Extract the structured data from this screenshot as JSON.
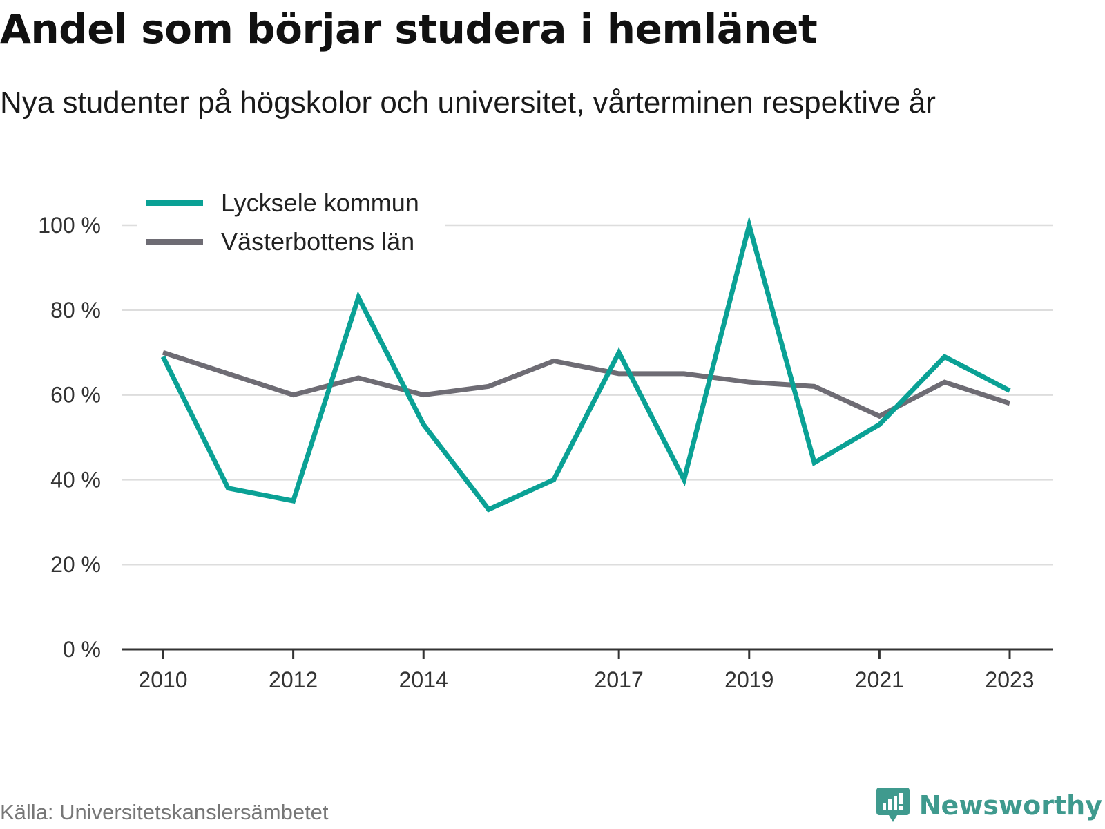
{
  "title": "Andel som börjar studera i hemlänet",
  "subtitle": "Nya studenter på högskolor och universitet, vårterminen respektive år",
  "source": "Källa: Universitetskanslersämbetet",
  "brand": "Newsworthy",
  "colors": {
    "lycksele": "#0aa195",
    "vasterbotten": "#6e6c74",
    "grid": "#dddddd",
    "axis": "#333333",
    "brand": "#3f9a8e"
  },
  "chart_data": {
    "type": "line",
    "x": [
      2010,
      2011,
      2012,
      2013,
      2014,
      2015,
      2016,
      2017,
      2018,
      2019,
      2020,
      2021,
      2022,
      2023
    ],
    "x_tick_labels": [
      "2010",
      "2012",
      "2014",
      "2017",
      "2019",
      "2021",
      "2023"
    ],
    "y_tick_labels": [
      "0 %",
      "20 %",
      "40 %",
      "60 %",
      "80 %",
      "100 %"
    ],
    "ylim": [
      0,
      100
    ],
    "legend_position": "top-left",
    "grid": true,
    "series": [
      {
        "name": "Lycksele kommun",
        "color": "#0aa195",
        "values": [
          69,
          38,
          35,
          83,
          53,
          33,
          40,
          70,
          40,
          100,
          44,
          53,
          69,
          61
        ]
      },
      {
        "name": "Västerbottens län",
        "color": "#6e6c74",
        "values": [
          70,
          65,
          60,
          64,
          60,
          62,
          68,
          65,
          65,
          63,
          62,
          55,
          63,
          58
        ]
      }
    ]
  }
}
